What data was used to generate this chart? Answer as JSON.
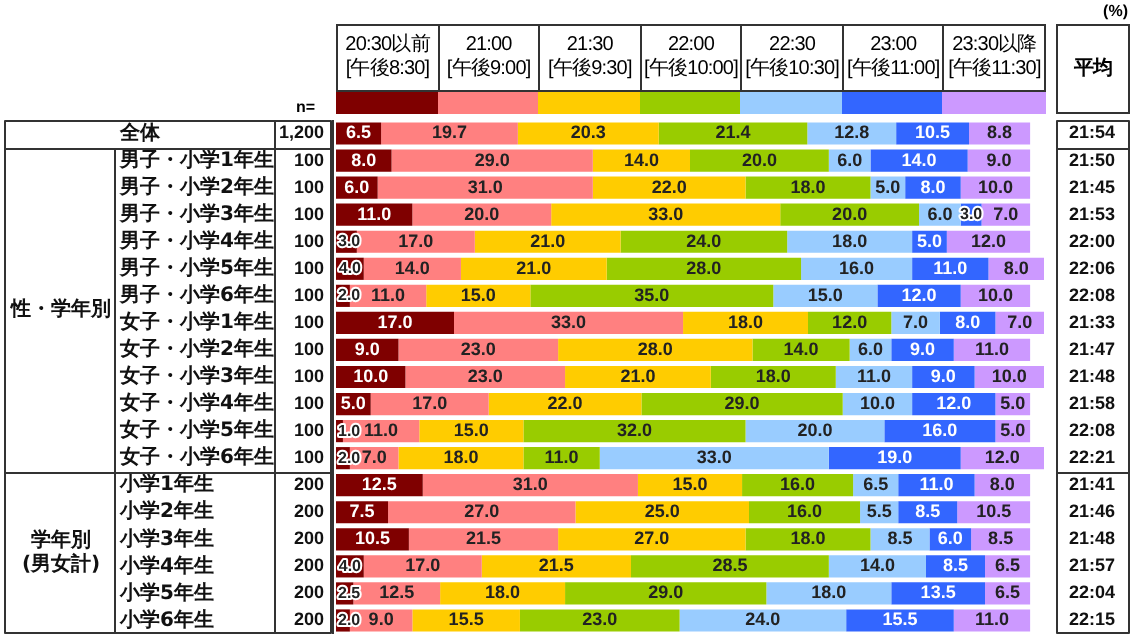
{
  "chart_data": {
    "type": "bar",
    "orientation": "horizontal",
    "stacked": true,
    "legend": "top",
    "categories": [
      "全体",
      "男子・小学1年生",
      "男子・小学2年生",
      "男子・小学3年生",
      "男子・小学4年生",
      "男子・小学5年生",
      "男子・小学6年生",
      "女子・小学1年生",
      "女子・小学2年生",
      "女子・小学3年生",
      "女子・小学4年生",
      "女子・小学5年生",
      "女子・小学6年生",
      "小学1年生",
      "小学2年生",
      "小学3年生",
      "小学4年生",
      "小学5年生",
      "小学6年生"
    ],
    "series": [
      {
        "name": "20:30以前\n[午後8:30]",
        "color": "#7f0000",
        "values": [
          6.5,
          8.0,
          6.0,
          11.0,
          3.0,
          4.0,
          2.0,
          17.0,
          9.0,
          10.0,
          5.0,
          1.0,
          2.0,
          12.5,
          7.5,
          10.5,
          4.0,
          2.5,
          2.0
        ],
        "value_labels": [
          "6.5",
          "8.0",
          "6.0",
          "11.0",
          "3.0",
          "4.0",
          "2.0",
          "17.0",
          "9.0",
          "10.0",
          "5.0",
          "1.0",
          "2.0",
          "12.5",
          "7.5",
          "10.5",
          "4.0",
          "2.5",
          "2.0"
        ]
      },
      {
        "name": "21:00\n[午後9:00]",
        "color": "#ff8080",
        "values": [
          19.7,
          29.0,
          31.0,
          20.0,
          17.0,
          14.0,
          11.0,
          33.0,
          23.0,
          23.0,
          17.0,
          11.0,
          7.0,
          31.0,
          27.0,
          21.5,
          17.0,
          12.5,
          9.0
        ],
        "value_labels": [
          "19.7",
          "29.0",
          "31.0",
          "20.0",
          "17.0",
          "14.0",
          "11.0",
          "33.0",
          "23.0",
          "23.0",
          "17.0",
          "11.0",
          "7.0",
          "31.0",
          "27.0",
          "21.5",
          "17.0",
          "12.5",
          "9.0"
        ]
      },
      {
        "name": "21:30\n[午後9:30]",
        "color": "#ffcc00",
        "values": [
          20.3,
          14.0,
          22.0,
          33.0,
          21.0,
          21.0,
          15.0,
          18.0,
          28.0,
          21.0,
          22.0,
          15.0,
          18.0,
          15.0,
          25.0,
          27.0,
          21.5,
          18.0,
          15.5
        ],
        "value_labels": [
          "20.3",
          "14.0",
          "22.0",
          "33.0",
          "21.0",
          "21.0",
          "15.0",
          "18.0",
          "28.0",
          "21.0",
          "22.0",
          "15.0",
          "18.0",
          "15.0",
          "25.0",
          "27.0",
          "21.5",
          "18.0",
          "15.5"
        ]
      },
      {
        "name": "22:00\n[午後10:00]",
        "color": "#99cc00",
        "values": [
          21.4,
          20.0,
          18.0,
          20.0,
          24.0,
          28.0,
          35.0,
          12.0,
          14.0,
          18.0,
          29.0,
          32.0,
          11.0,
          16.0,
          16.0,
          18.0,
          28.5,
          29.0,
          23.0
        ],
        "value_labels": [
          "21.4",
          "20.0",
          "18.0",
          "20.0",
          "24.0",
          "28.0",
          "35.0",
          "12.0",
          "14.0",
          "18.0",
          "29.0",
          "32.0",
          "11.0",
          "16.0",
          "16.0",
          "18.0",
          "28.5",
          "29.0",
          "23.0"
        ]
      },
      {
        "name": "22:30\n[午後10:30]",
        "color": "#99ccff",
        "values": [
          12.8,
          6.0,
          5.0,
          6.0,
          18.0,
          16.0,
          15.0,
          7.0,
          6.0,
          11.0,
          10.0,
          20.0,
          33.0,
          6.5,
          5.5,
          8.5,
          14.0,
          18.0,
          24.0
        ],
        "value_labels": [
          "12.8",
          "6.0",
          "5.0",
          "6.0",
          "18.0",
          "16.0",
          "15.0",
          "7.0",
          "6.0",
          "11.0",
          "10.0",
          "20.0",
          "33.0",
          "6.5",
          "5.5",
          "8.5",
          "14.0",
          "18.0",
          "24.0"
        ]
      },
      {
        "name": "23:00\n[午後11:00]",
        "color": "#3366ff",
        "values": [
          10.5,
          14.0,
          8.0,
          3.0,
          5.0,
          11.0,
          12.0,
          8.0,
          9.0,
          9.0,
          12.0,
          16.0,
          19.0,
          11.0,
          8.5,
          6.0,
          8.5,
          13.5,
          15.5
        ],
        "value_labels": [
          "10.5",
          "14.0",
          "8.0",
          "3.0",
          "5.0",
          "11.0",
          "12.0",
          "8.0",
          "9.0",
          "9.0",
          "12.0",
          "16.0",
          "19.0",
          "11.0",
          "8.5",
          "6.0",
          "8.5",
          "13.5",
          "15.5"
        ]
      },
      {
        "name": "23:30以降\n[午後11:30]",
        "color": "#cc99ff",
        "values": [
          8.8,
          9.0,
          10.0,
          7.0,
          12.0,
          8.0,
          10.0,
          7.0,
          11.0,
          10.0,
          5.0,
          5.0,
          12.0,
          8.0,
          10.5,
          8.5,
          6.5,
          6.5,
          11.0
        ],
        "value_labels": [
          "8.8",
          "9.0",
          "10.0",
          "7.0",
          "12.0",
          "8.0",
          "10.0",
          "7.0",
          "11.0",
          "10.0",
          "5.0",
          "5.0",
          "12.0",
          "8.0",
          "10.5",
          "8.5",
          "6.5",
          "6.5",
          "11.0"
        ]
      }
    ],
    "annotations": [
      "(%)",
      "n=",
      "平均",
      "性・学年別",
      "学年別\n(男女計)",
      "1,200",
      "100",
      "100",
      "100",
      "100",
      "100",
      "100",
      "100",
      "100",
      "100",
      "100",
      "100",
      "100",
      "200",
      "200",
      "200",
      "200",
      "200",
      "200",
      "21:54",
      "21:50",
      "21:45",
      "21:53",
      "22:00",
      "22:06",
      "22:08",
      "21:33",
      "21:47",
      "21:48",
      "21:58",
      "22:08",
      "22:21",
      "21:41",
      "21:46",
      "21:48",
      "21:57",
      "22:04",
      "22:15"
    ]
  }
}
